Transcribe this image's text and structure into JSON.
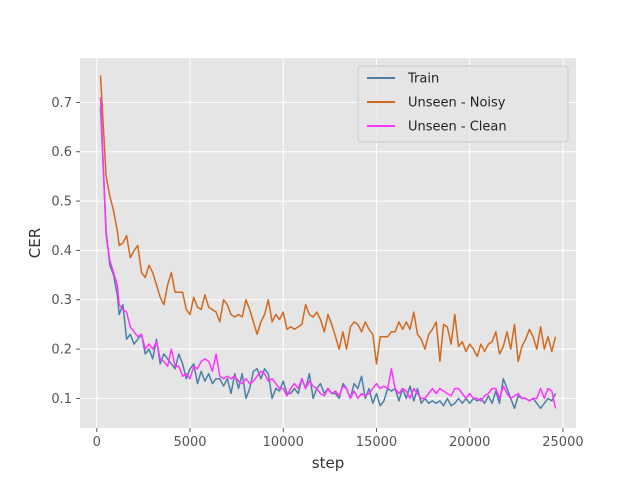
{
  "chart_data": {
    "type": "line",
    "title": "",
    "xlabel": "step",
    "ylabel": "CER",
    "xlim": [
      -900,
      25700
    ],
    "ylim": [
      0.04,
      0.79
    ],
    "xticks": [
      0,
      5000,
      10000,
      15000,
      20000,
      25000
    ],
    "yticks": [
      0.1,
      0.2,
      0.3,
      0.4,
      0.5,
      0.6,
      0.7
    ],
    "grid": true,
    "legend_position": "top-right",
    "series": [
      {
        "name": "Train",
        "color": "#4b7fa8",
        "x": [
          200,
          500,
          700,
          900,
          1100,
          1200,
          1400,
          1600,
          1800,
          2000,
          2200,
          2400,
          2600,
          2800,
          3000,
          3200,
          3400,
          3600,
          3800,
          4000,
          4200,
          4400,
          4600,
          4800,
          5000,
          5200,
          5400,
          5600,
          5800,
          6000,
          6200,
          6400,
          6600,
          6800,
          7000,
          7200,
          7400,
          7600,
          7800,
          8000,
          8200,
          8400,
          8600,
          8800,
          9000,
          9200,
          9400,
          9600,
          9800,
          10000,
          10200,
          10400,
          10600,
          10800,
          11000,
          11200,
          11400,
          11600,
          11800,
          12000,
          12200,
          12400,
          12600,
          12800,
          13000,
          13200,
          13400,
          13600,
          13800,
          14000,
          14200,
          14400,
          14600,
          14800,
          15000,
          15200,
          15400,
          15600,
          15800,
          16000,
          16200,
          16400,
          16600,
          16800,
          17000,
          17200,
          17400,
          17600,
          17800,
          18000,
          18200,
          18400,
          18600,
          18800,
          19000,
          19200,
          19400,
          19600,
          19800,
          20000,
          20200,
          20400,
          20600,
          20800,
          21000,
          21200,
          21400,
          21600,
          21800,
          22000,
          22200,
          22400,
          22600,
          22800,
          23000,
          23200,
          23400,
          23600,
          23800,
          24000,
          24200,
          24400,
          24600
        ],
        "values": [
          0.69,
          0.44,
          0.37,
          0.35,
          0.31,
          0.27,
          0.29,
          0.22,
          0.23,
          0.21,
          0.22,
          0.23,
          0.19,
          0.2,
          0.18,
          0.22,
          0.17,
          0.19,
          0.18,
          0.17,
          0.16,
          0.19,
          0.17,
          0.14,
          0.16,
          0.17,
          0.13,
          0.155,
          0.135,
          0.15,
          0.13,
          0.14,
          0.14,
          0.125,
          0.14,
          0.11,
          0.15,
          0.12,
          0.15,
          0.1,
          0.12,
          0.155,
          0.16,
          0.14,
          0.16,
          0.15,
          0.1,
          0.12,
          0.115,
          0.135,
          0.11,
          0.11,
          0.12,
          0.11,
          0.14,
          0.12,
          0.15,
          0.1,
          0.12,
          0.13,
          0.11,
          0.12,
          0.11,
          0.11,
          0.1,
          0.13,
          0.12,
          0.1,
          0.13,
          0.12,
          0.145,
          0.1,
          0.12,
          0.09,
          0.11,
          0.085,
          0.095,
          0.12,
          0.115,
          0.12,
          0.095,
          0.12,
          0.1,
          0.125,
          0.095,
          0.12,
          0.09,
          0.1,
          0.09,
          0.095,
          0.09,
          0.095,
          0.085,
          0.1,
          0.085,
          0.09,
          0.1,
          0.09,
          0.1,
          0.09,
          0.1,
          0.095,
          0.1,
          0.09,
          0.105,
          0.09,
          0.115,
          0.09,
          0.14,
          0.12,
          0.1,
          0.08,
          0.105,
          0.1,
          0.1,
          0.095,
          0.1,
          0.09,
          0.08,
          0.09,
          0.1,
          0.095,
          0.11
        ]
      },
      {
        "name": "Unseen - Noisy",
        "color": "#d2691e",
        "x": [
          200,
          500,
          700,
          900,
          1100,
          1200,
          1400,
          1600,
          1800,
          2000,
          2200,
          2400,
          2600,
          2800,
          3000,
          3200,
          3400,
          3600,
          3800,
          4000,
          4200,
          4400,
          4600,
          4800,
          5000,
          5200,
          5400,
          5600,
          5800,
          6000,
          6200,
          6400,
          6600,
          6800,
          7000,
          7200,
          7400,
          7600,
          7800,
          8000,
          8200,
          8400,
          8600,
          8800,
          9000,
          9200,
          9400,
          9600,
          9800,
          10000,
          10200,
          10400,
          10600,
          10800,
          11000,
          11200,
          11400,
          11600,
          11800,
          12000,
          12200,
          12400,
          12600,
          12800,
          13000,
          13200,
          13400,
          13600,
          13800,
          14000,
          14200,
          14400,
          14600,
          14800,
          15000,
          15200,
          15400,
          15600,
          15800,
          16000,
          16200,
          16400,
          16600,
          16800,
          17000,
          17200,
          17400,
          17600,
          17800,
          18000,
          18200,
          18400,
          18600,
          18800,
          19000,
          19200,
          19400,
          19600,
          19800,
          20000,
          20200,
          20400,
          20600,
          20800,
          21000,
          21200,
          21400,
          21600,
          21800,
          22000,
          22200,
          22400,
          22600,
          22800,
          23000,
          23200,
          23400,
          23600,
          23800,
          24000,
          24200,
          24400,
          24600
        ],
        "values": [
          0.755,
          0.55,
          0.51,
          0.48,
          0.44,
          0.41,
          0.415,
          0.43,
          0.385,
          0.4,
          0.41,
          0.355,
          0.345,
          0.37,
          0.355,
          0.33,
          0.305,
          0.29,
          0.33,
          0.355,
          0.315,
          0.315,
          0.315,
          0.28,
          0.27,
          0.305,
          0.285,
          0.28,
          0.31,
          0.285,
          0.28,
          0.275,
          0.255,
          0.3,
          0.29,
          0.27,
          0.265,
          0.27,
          0.265,
          0.3,
          0.28,
          0.255,
          0.23,
          0.255,
          0.27,
          0.3,
          0.255,
          0.27,
          0.26,
          0.275,
          0.24,
          0.245,
          0.24,
          0.245,
          0.25,
          0.29,
          0.27,
          0.265,
          0.275,
          0.26,
          0.235,
          0.27,
          0.25,
          0.225,
          0.2,
          0.235,
          0.2,
          0.245,
          0.255,
          0.25,
          0.235,
          0.255,
          0.24,
          0.23,
          0.17,
          0.225,
          0.225,
          0.225,
          0.235,
          0.235,
          0.255,
          0.24,
          0.255,
          0.24,
          0.275,
          0.23,
          0.22,
          0.2,
          0.23,
          0.24,
          0.255,
          0.175,
          0.25,
          0.245,
          0.21,
          0.27,
          0.205,
          0.215,
          0.195,
          0.21,
          0.2,
          0.185,
          0.21,
          0.195,
          0.21,
          0.215,
          0.235,
          0.19,
          0.205,
          0.235,
          0.2,
          0.25,
          0.175,
          0.205,
          0.22,
          0.24,
          0.225,
          0.2,
          0.245,
          0.2,
          0.225,
          0.195,
          0.225
        ]
      },
      {
        "name": "Unseen - Clean",
        "color": "#ff33ff",
        "x": [
          200,
          500,
          700,
          900,
          1100,
          1200,
          1400,
          1600,
          1800,
          2000,
          2200,
          2400,
          2600,
          2800,
          3000,
          3200,
          3400,
          3600,
          3800,
          4000,
          4200,
          4400,
          4600,
          4800,
          5000,
          5200,
          5400,
          5600,
          5800,
          6000,
          6200,
          6400,
          6600,
          6800,
          7000,
          7200,
          7400,
          7600,
          7800,
          8000,
          8200,
          8400,
          8600,
          8800,
          9000,
          9200,
          9400,
          9600,
          9800,
          10000,
          10200,
          10400,
          10600,
          10800,
          11000,
          11200,
          11400,
          11600,
          11800,
          12000,
          12200,
          12400,
          12600,
          12800,
          13000,
          13200,
          13400,
          13600,
          13800,
          14000,
          14200,
          14400,
          14600,
          14800,
          15000,
          15200,
          15400,
          15600,
          15800,
          16000,
          16200,
          16400,
          16600,
          16800,
          17000,
          17200,
          17400,
          17600,
          17800,
          18000,
          18200,
          18400,
          18600,
          18800,
          19000,
          19200,
          19400,
          19600,
          19800,
          20000,
          20200,
          20400,
          20600,
          20800,
          21000,
          21200,
          21400,
          21600,
          21800,
          22000,
          22200,
          22400,
          22600,
          22800,
          23000,
          23200,
          23400,
          23600,
          23800,
          24000,
          24200,
          24400,
          24600
        ],
        "values": [
          0.71,
          0.43,
          0.38,
          0.355,
          0.33,
          0.29,
          0.28,
          0.275,
          0.245,
          0.235,
          0.225,
          0.23,
          0.2,
          0.21,
          0.2,
          0.215,
          0.18,
          0.175,
          0.165,
          0.2,
          0.165,
          0.165,
          0.145,
          0.15,
          0.14,
          0.165,
          0.16,
          0.175,
          0.18,
          0.175,
          0.155,
          0.19,
          0.145,
          0.14,
          0.145,
          0.14,
          0.145,
          0.135,
          0.13,
          0.14,
          0.13,
          0.135,
          0.145,
          0.155,
          0.15,
          0.135,
          0.14,
          0.13,
          0.12,
          0.12,
          0.105,
          0.12,
          0.13,
          0.12,
          0.14,
          0.12,
          0.135,
          0.125,
          0.12,
          0.11,
          0.105,
          0.12,
          0.11,
          0.115,
          0.105,
          0.125,
          0.12,
          0.1,
          0.115,
          0.1,
          0.11,
          0.105,
          0.11,
          0.12,
          0.13,
          0.12,
          0.125,
          0.12,
          0.16,
          0.12,
          0.11,
          0.12,
          0.115,
          0.1,
          0.12,
          0.11,
          0.1,
          0.1,
          0.11,
          0.12,
          0.11,
          0.12,
          0.115,
          0.11,
          0.105,
          0.12,
          0.12,
          0.11,
          0.1,
          0.11,
          0.1,
          0.1,
          0.095,
          0.105,
          0.11,
          0.12,
          0.12,
          0.1,
          0.125,
          0.11,
          0.1,
          0.105,
          0.11,
          0.1,
          0.1,
          0.095,
          0.1,
          0.1,
          0.12,
          0.1,
          0.12,
          0.115,
          0.08
        ]
      }
    ]
  }
}
